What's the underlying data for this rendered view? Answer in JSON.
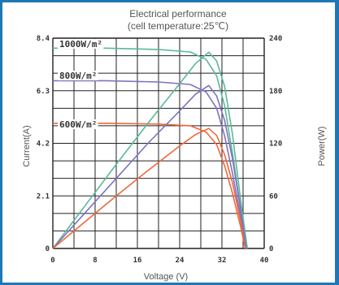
{
  "chart_data": {
    "type": "line",
    "title": "Electrical performance",
    "subtitle": "(cell temperature:25℃)",
    "xlabel": "Voltage (V)",
    "ylabel_left": "Current(A)",
    "ylabel_right": "Power(W)",
    "xlim": [
      0,
      40
    ],
    "ylim_left": [
      0,
      8.4
    ],
    "ylim_right": [
      0,
      240
    ],
    "x_ticks": [
      "0",
      "8",
      "16",
      "24",
      "32",
      "40"
    ],
    "y_left_ticks": [
      "0",
      "2.1",
      "4.2",
      "6.3",
      "8.4"
    ],
    "y_right_ticks": [
      "0",
      "60",
      "120",
      "180",
      "240"
    ],
    "grid": true,
    "irradiance_labels": [
      "1000W/m²",
      "800W/m²",
      "600W/m²"
    ],
    "colors": {
      "iv_1000": "#5bb89a",
      "iv_800": "#7d72bf",
      "iv_600": "#f0683d",
      "grid": "#222222"
    },
    "series": [
      {
        "axis": "current",
        "color": "iv_1000",
        "points": [
          [
            0,
            8.0
          ],
          [
            10,
            8.0
          ],
          [
            20,
            7.95
          ],
          [
            26,
            7.85
          ],
          [
            29,
            7.55
          ],
          [
            31,
            6.9
          ],
          [
            32.5,
            5.7
          ],
          [
            34,
            3.8
          ],
          [
            35.5,
            1.6
          ],
          [
            36.8,
            0
          ]
        ]
      },
      {
        "axis": "current",
        "color": "iv_800",
        "points": [
          [
            0,
            6.7
          ],
          [
            10,
            6.7
          ],
          [
            20,
            6.65
          ],
          [
            26,
            6.55
          ],
          [
            29,
            6.25
          ],
          [
            31,
            5.6
          ],
          [
            32.5,
            4.5
          ],
          [
            34,
            3.0
          ],
          [
            35.5,
            1.3
          ],
          [
            36.6,
            0
          ]
        ]
      },
      {
        "axis": "current",
        "color": "iv_600",
        "points": [
          [
            0,
            5.0
          ],
          [
            10,
            5.0
          ],
          [
            20,
            4.97
          ],
          [
            26,
            4.9
          ],
          [
            29,
            4.65
          ],
          [
            31,
            4.15
          ],
          [
            32.5,
            3.3
          ],
          [
            34,
            2.2
          ],
          [
            35.5,
            0.9
          ],
          [
            36.4,
            0
          ]
        ]
      },
      {
        "axis": "power",
        "color": "iv_1000",
        "points": [
          [
            0,
            0
          ],
          [
            6,
            48
          ],
          [
            12,
            96
          ],
          [
            18,
            143
          ],
          [
            24,
            188
          ],
          [
            27,
            211
          ],
          [
            29.5,
            224
          ],
          [
            31,
            214
          ],
          [
            32.5,
            185
          ],
          [
            34,
            130
          ],
          [
            35.5,
            57
          ],
          [
            36.8,
            0
          ]
        ]
      },
      {
        "axis": "power",
        "color": "iv_800",
        "points": [
          [
            0,
            0
          ],
          [
            6,
            40
          ],
          [
            12,
            80
          ],
          [
            18,
            120
          ],
          [
            24,
            157
          ],
          [
            27,
            176
          ],
          [
            29.5,
            186
          ],
          [
            31,
            174
          ],
          [
            32.5,
            146
          ],
          [
            34,
            102
          ],
          [
            35.5,
            46
          ],
          [
            36.6,
            0
          ]
        ]
      },
      {
        "axis": "power",
        "color": "iv_600",
        "points": [
          [
            0,
            0
          ],
          [
            6,
            30
          ],
          [
            12,
            60
          ],
          [
            18,
            89
          ],
          [
            24,
            117
          ],
          [
            27,
            130
          ],
          [
            29.5,
            137
          ],
          [
            31,
            129
          ],
          [
            32.5,
            107
          ],
          [
            34,
            75
          ],
          [
            35.5,
            32
          ],
          [
            36.4,
            0
          ]
        ]
      }
    ]
  }
}
